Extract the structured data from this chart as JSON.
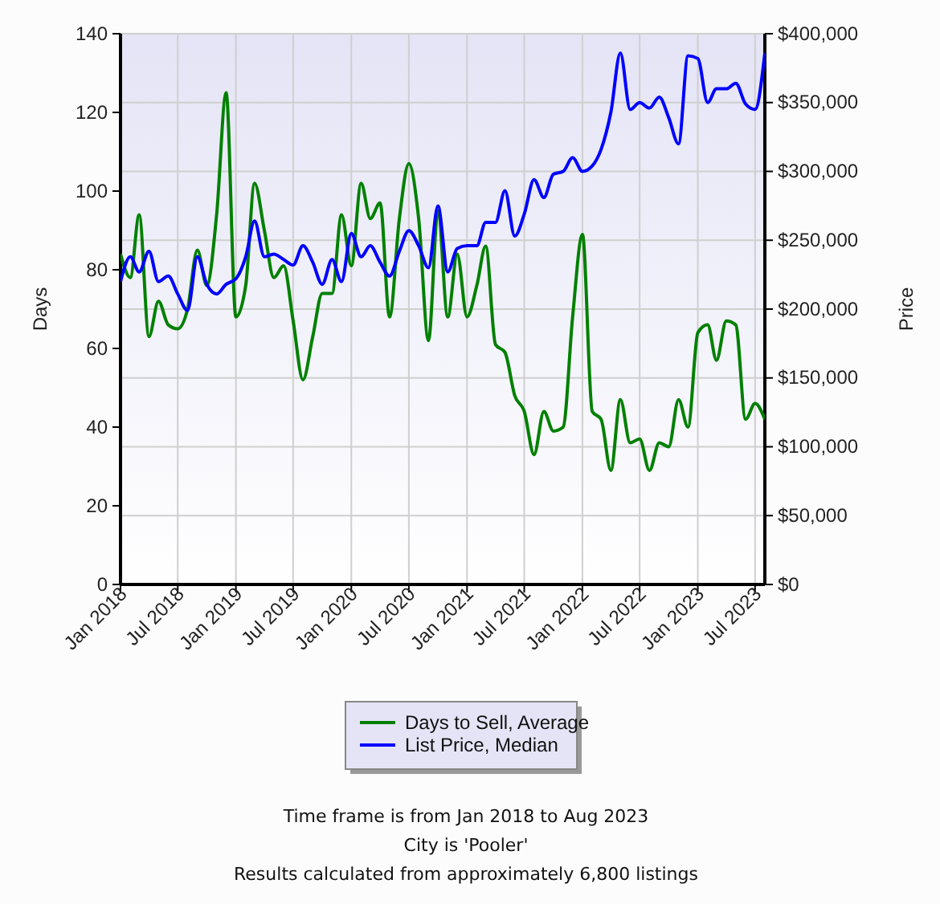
{
  "chart_data": {
    "type": "line",
    "xlabel": null,
    "ylabel": "Days",
    "y2label": "Price",
    "x": [
      "2018-01",
      "2018-02",
      "2018-03",
      "2018-04",
      "2018-05",
      "2018-06",
      "2018-07",
      "2018-08",
      "2018-09",
      "2018-10",
      "2018-11",
      "2018-12",
      "2019-01",
      "2019-02",
      "2019-03",
      "2019-04",
      "2019-05",
      "2019-06",
      "2019-07",
      "2019-08",
      "2019-09",
      "2019-10",
      "2019-11",
      "2019-12",
      "2020-01",
      "2020-02",
      "2020-03",
      "2020-04",
      "2020-05",
      "2020-06",
      "2020-07",
      "2020-08",
      "2020-09",
      "2020-10",
      "2020-11",
      "2020-12",
      "2021-01",
      "2021-02",
      "2021-03",
      "2021-04",
      "2021-05",
      "2021-06",
      "2021-07",
      "2021-08",
      "2021-09",
      "2021-10",
      "2021-11",
      "2021-12",
      "2022-01",
      "2022-02",
      "2022-03",
      "2022-04",
      "2022-05",
      "2022-06",
      "2022-07",
      "2022-08",
      "2022-09",
      "2022-10",
      "2022-11",
      "2022-12",
      "2023-01",
      "2023-02",
      "2023-03",
      "2023-04",
      "2023-05",
      "2023-06",
      "2023-07",
      "2023-08"
    ],
    "series": [
      {
        "name": "Days to Sell, Average",
        "color": "#008000",
        "values": [
          84,
          78,
          94,
          63,
          72,
          66,
          65,
          70,
          85,
          76,
          94,
          125,
          68,
          76,
          102,
          90,
          78,
          81,
          67,
          52,
          63,
          74,
          74,
          94,
          81,
          102,
          93,
          97,
          68,
          93,
          107,
          93,
          62,
          95,
          68,
          84,
          68,
          76,
          86,
          61,
          59,
          48,
          44,
          33,
          44,
          39,
          40,
          68,
          89,
          44,
          42,
          29,
          47,
          36,
          37,
          29,
          36,
          35,
          47,
          40,
          64,
          66,
          57,
          67,
          66,
          42,
          46,
          42
        ]
      },
      {
        "name": "List Price, Median",
        "color": "#0000ff",
        "axis": "y2",
        "values": [
          220000,
          238000,
          227000,
          242000,
          220000,
          224000,
          211000,
          199000,
          238000,
          218000,
          211000,
          218000,
          222000,
          238000,
          264000,
          238000,
          240000,
          236000,
          232000,
          246000,
          234000,
          218000,
          236000,
          220000,
          255000,
          238000,
          246000,
          234000,
          224000,
          242000,
          257000,
          246000,
          230000,
          275000,
          227000,
          244000,
          246000,
          246000,
          263000,
          263000,
          286000,
          253000,
          269000,
          294000,
          281000,
          298000,
          300000,
          310000,
          300000,
          304000,
          316000,
          343000,
          386000,
          345000,
          350000,
          346000,
          354000,
          339000,
          320000,
          384000,
          382000,
          350000,
          360000,
          360000,
          364000,
          349000,
          345000,
          386000
        ]
      }
    ],
    "xlim": [
      "2018-01",
      "2023-08"
    ],
    "xticks": [
      {
        "value": "2018-01",
        "label": "Jan 2018"
      },
      {
        "value": "2018-07",
        "label": "Jul 2018"
      },
      {
        "value": "2019-01",
        "label": "Jan 2019"
      },
      {
        "value": "2019-07",
        "label": "Jul 2019"
      },
      {
        "value": "2020-01",
        "label": "Jan 2020"
      },
      {
        "value": "2020-07",
        "label": "Jul 2020"
      },
      {
        "value": "2021-01",
        "label": "Jan 2021"
      },
      {
        "value": "2021-07",
        "label": "Jul 2021"
      },
      {
        "value": "2022-01",
        "label": "Jan 2022"
      },
      {
        "value": "2022-07",
        "label": "Jul 2022"
      },
      {
        "value": "2023-01",
        "label": "Jan 2023"
      },
      {
        "value": "2023-07",
        "label": "Jul 2023"
      }
    ],
    "ylim": [
      0,
      140
    ],
    "yticks": [
      0,
      20,
      40,
      60,
      80,
      100,
      120,
      140
    ],
    "y2lim": [
      0,
      400000
    ],
    "y2ticks": [
      {
        "value": 0,
        "label": "$0"
      },
      {
        "value": 50000,
        "label": "$50,000"
      },
      {
        "value": 100000,
        "label": "$100,000"
      },
      {
        "value": 150000,
        "label": "$150,000"
      },
      {
        "value": 200000,
        "label": "$200,000"
      },
      {
        "value": 250000,
        "label": "$250,000"
      },
      {
        "value": 300000,
        "label": "$300,000"
      },
      {
        "value": 350000,
        "label": "$350,000"
      },
      {
        "value": 400000,
        "label": "$400,000"
      }
    ],
    "grid": true,
    "legend": "bottom",
    "marker": "none",
    "line_style": "solid",
    "annotations": [
      "Time frame is from Jan 2018 to Aug 2023",
      "City is 'Pooler'",
      "Results calculated from approximately 6,800 listings"
    ]
  }
}
